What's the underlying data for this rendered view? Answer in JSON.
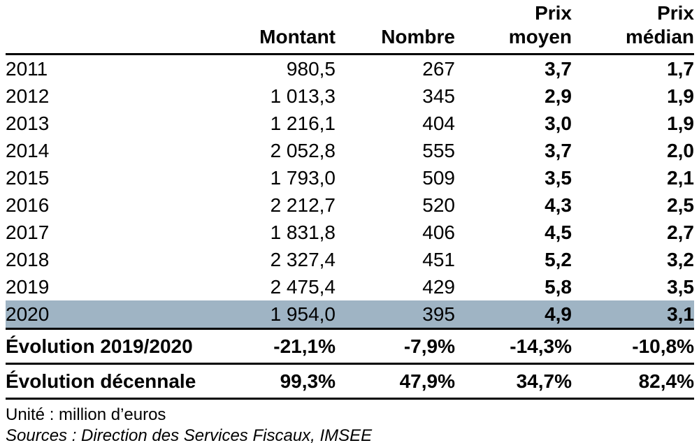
{
  "chart_data": {
    "type": "table",
    "columns": [
      "Montant",
      "Nombre",
      "Prix moyen",
      "Prix médian"
    ],
    "column_headers": [
      {
        "line1": "",
        "line2": "Montant"
      },
      {
        "line1": "",
        "line2": "Nombre"
      },
      {
        "line1": "Prix",
        "line2": "moyen"
      },
      {
        "line1": "Prix",
        "line2": "médian"
      }
    ],
    "rows": [
      {
        "year": "2011",
        "montant": "980,5",
        "nombre": "267",
        "prix_moyen": "3,7",
        "prix_median": "1,7",
        "highlighted": false
      },
      {
        "year": "2012",
        "montant": "1 013,3",
        "nombre": "345",
        "prix_moyen": "2,9",
        "prix_median": "1,9",
        "highlighted": false
      },
      {
        "year": "2013",
        "montant": "1 216,1",
        "nombre": "404",
        "prix_moyen": "3,0",
        "prix_median": "1,9",
        "highlighted": false
      },
      {
        "year": "2014",
        "montant": "2 052,8",
        "nombre": "555",
        "prix_moyen": "3,7",
        "prix_median": "2,0",
        "highlighted": false
      },
      {
        "year": "2015",
        "montant": "1 793,0",
        "nombre": "509",
        "prix_moyen": "3,5",
        "prix_median": "2,1",
        "highlighted": false
      },
      {
        "year": "2016",
        "montant": "2 212,7",
        "nombre": "520",
        "prix_moyen": "4,3",
        "prix_median": "2,5",
        "highlighted": false
      },
      {
        "year": "2017",
        "montant": "1 831,8",
        "nombre": "406",
        "prix_moyen": "4,5",
        "prix_median": "2,7",
        "highlighted": false
      },
      {
        "year": "2018",
        "montant": "2 327,4",
        "nombre": "451",
        "prix_moyen": "5,2",
        "prix_median": "3,2",
        "highlighted": false
      },
      {
        "year": "2019",
        "montant": "2 475,4",
        "nombre": "429",
        "prix_moyen": "5,8",
        "prix_median": "3,5",
        "highlighted": false
      },
      {
        "year": "2020",
        "montant": "1 954,0",
        "nombre": "395",
        "prix_moyen": "4,9",
        "prix_median": "3,1",
        "highlighted": true
      }
    ],
    "summary_rows": [
      {
        "label": "Évolution 2019/2020",
        "montant": "-21,1%",
        "nombre": "-7,9%",
        "prix_moyen": "-14,3%",
        "prix_median": "-10,8%"
      },
      {
        "label": "Évolution décennale",
        "montant": "99,3%",
        "nombre": "47,9%",
        "prix_moyen": "34,7%",
        "prix_median": "82,4%"
      }
    ],
    "notes": {
      "unit": "Unité : million d’euros",
      "sources": "Sources : Direction des Services Fiscaux, IMSEE"
    },
    "layout": {
      "highlight_color": "#9FB4C4",
      "rule_color": "#000000"
    }
  }
}
